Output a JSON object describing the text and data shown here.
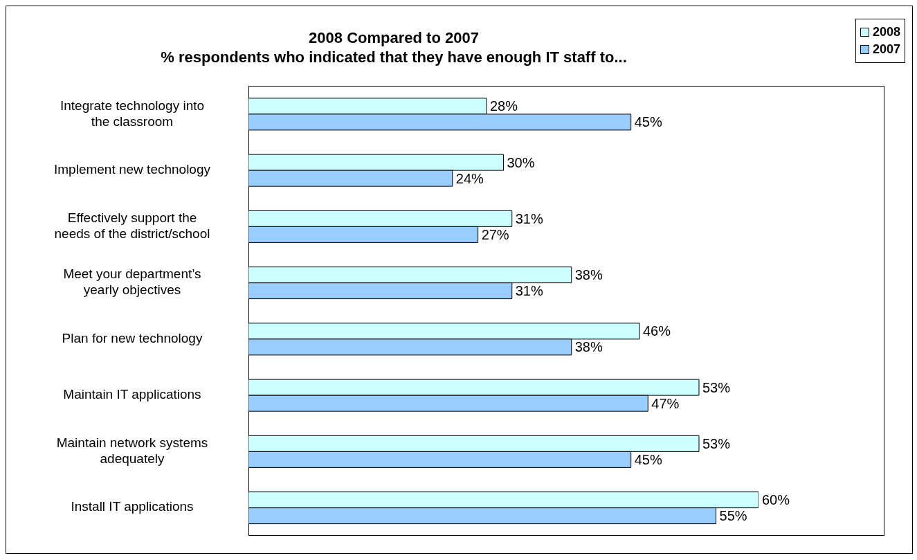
{
  "chart_data": {
    "type": "bar",
    "orientation": "horizontal",
    "title": "2008 Compared to 2007\n% respondents who indicated that they have enough IT staff to...",
    "categories": [
      "Integrate technology into the classroom",
      "Implement new technology",
      "Effectively support the needs of the district/school",
      "Meet your department’s yearly objectives",
      "Plan for new technology",
      "Maintain IT applications",
      "Maintain network systems adequately",
      "Install IT applications"
    ],
    "series": [
      {
        "name": "2008",
        "color": "#ccffff",
        "values": [
          28,
          30,
          31,
          38,
          46,
          53,
          53,
          60
        ],
        "value_labels": [
          "28%",
          "30%",
          "31%",
          "38%",
          "46%",
          "53%",
          "53%",
          "60%"
        ]
      },
      {
        "name": "2007",
        "color": "#99ccff",
        "values": [
          45,
          24,
          27,
          31,
          38,
          47,
          45,
          55
        ],
        "value_labels": [
          "45%",
          "24%",
          "27%",
          "31%",
          "38%",
          "47%",
          "45%",
          "55%"
        ]
      }
    ],
    "legend": "top right"
  }
}
